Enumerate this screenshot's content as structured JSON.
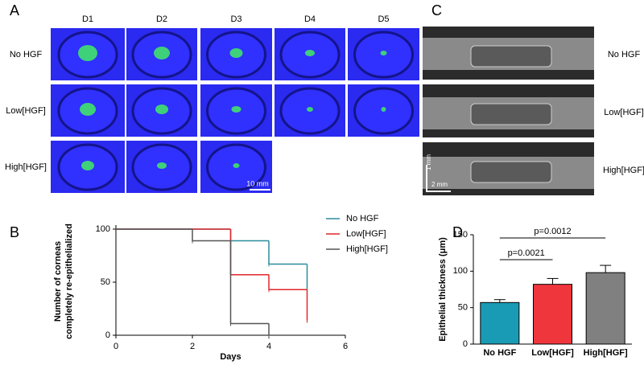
{
  "panel_labels": [
    "A",
    "B",
    "C",
    "D"
  ],
  "panel_a": {
    "columns": [
      "D1",
      "D2",
      "D3",
      "D4",
      "D5"
    ],
    "rows": [
      "No HGF",
      "Low[HGF]",
      "High[HGF]"
    ],
    "scale_bar": "10 mm"
  },
  "panel_c": {
    "rows": [
      "No HGF",
      "Low[HGF]",
      "High[HGF]"
    ],
    "scale_bars": [
      "1 mm",
      "2 mm"
    ]
  },
  "chart_data": [
    {
      "type": "step",
      "xlabel": "Days",
      "ylabel": [
        "Number of corneas",
        "completely re-epithelialized"
      ],
      "xlim": [
        0,
        6
      ],
      "xticks": [
        0,
        2,
        4,
        6
      ],
      "ylim": [
        0,
        100
      ],
      "yticks": [
        0,
        50,
        100
      ],
      "series": [
        {
          "name": "No HGF",
          "color": "#2a8d9c",
          "x": [
            0,
            3,
            4,
            5
          ],
          "values": [
            100,
            89,
            67,
            44
          ]
        },
        {
          "name": "Low[HGF]",
          "color": "#e0262c",
          "x": [
            0,
            3,
            4,
            5
          ],
          "values": [
            100,
            57,
            43,
            14
          ]
        },
        {
          "name": "High[HGF]",
          "color": "#555555",
          "x": [
            0,
            2,
            3,
            4
          ],
          "values": [
            100,
            89,
            11,
            0
          ]
        }
      ]
    },
    {
      "type": "bar",
      "ylabel": "Epithelial thickness (μm)",
      "categories": [
        "No HGF",
        "Low[HGF]",
        "High[HGF]"
      ],
      "values": [
        57,
        82,
        98
      ],
      "errors": [
        4,
        8,
        10
      ],
      "colors": [
        "#1a9bb5",
        "#f0363d",
        "#808080"
      ],
      "ylim": [
        0,
        150
      ],
      "yticks": [
        0,
        50,
        100,
        150
      ],
      "annotations": [
        "p=0.0021",
        "p=0.0012"
      ]
    }
  ]
}
